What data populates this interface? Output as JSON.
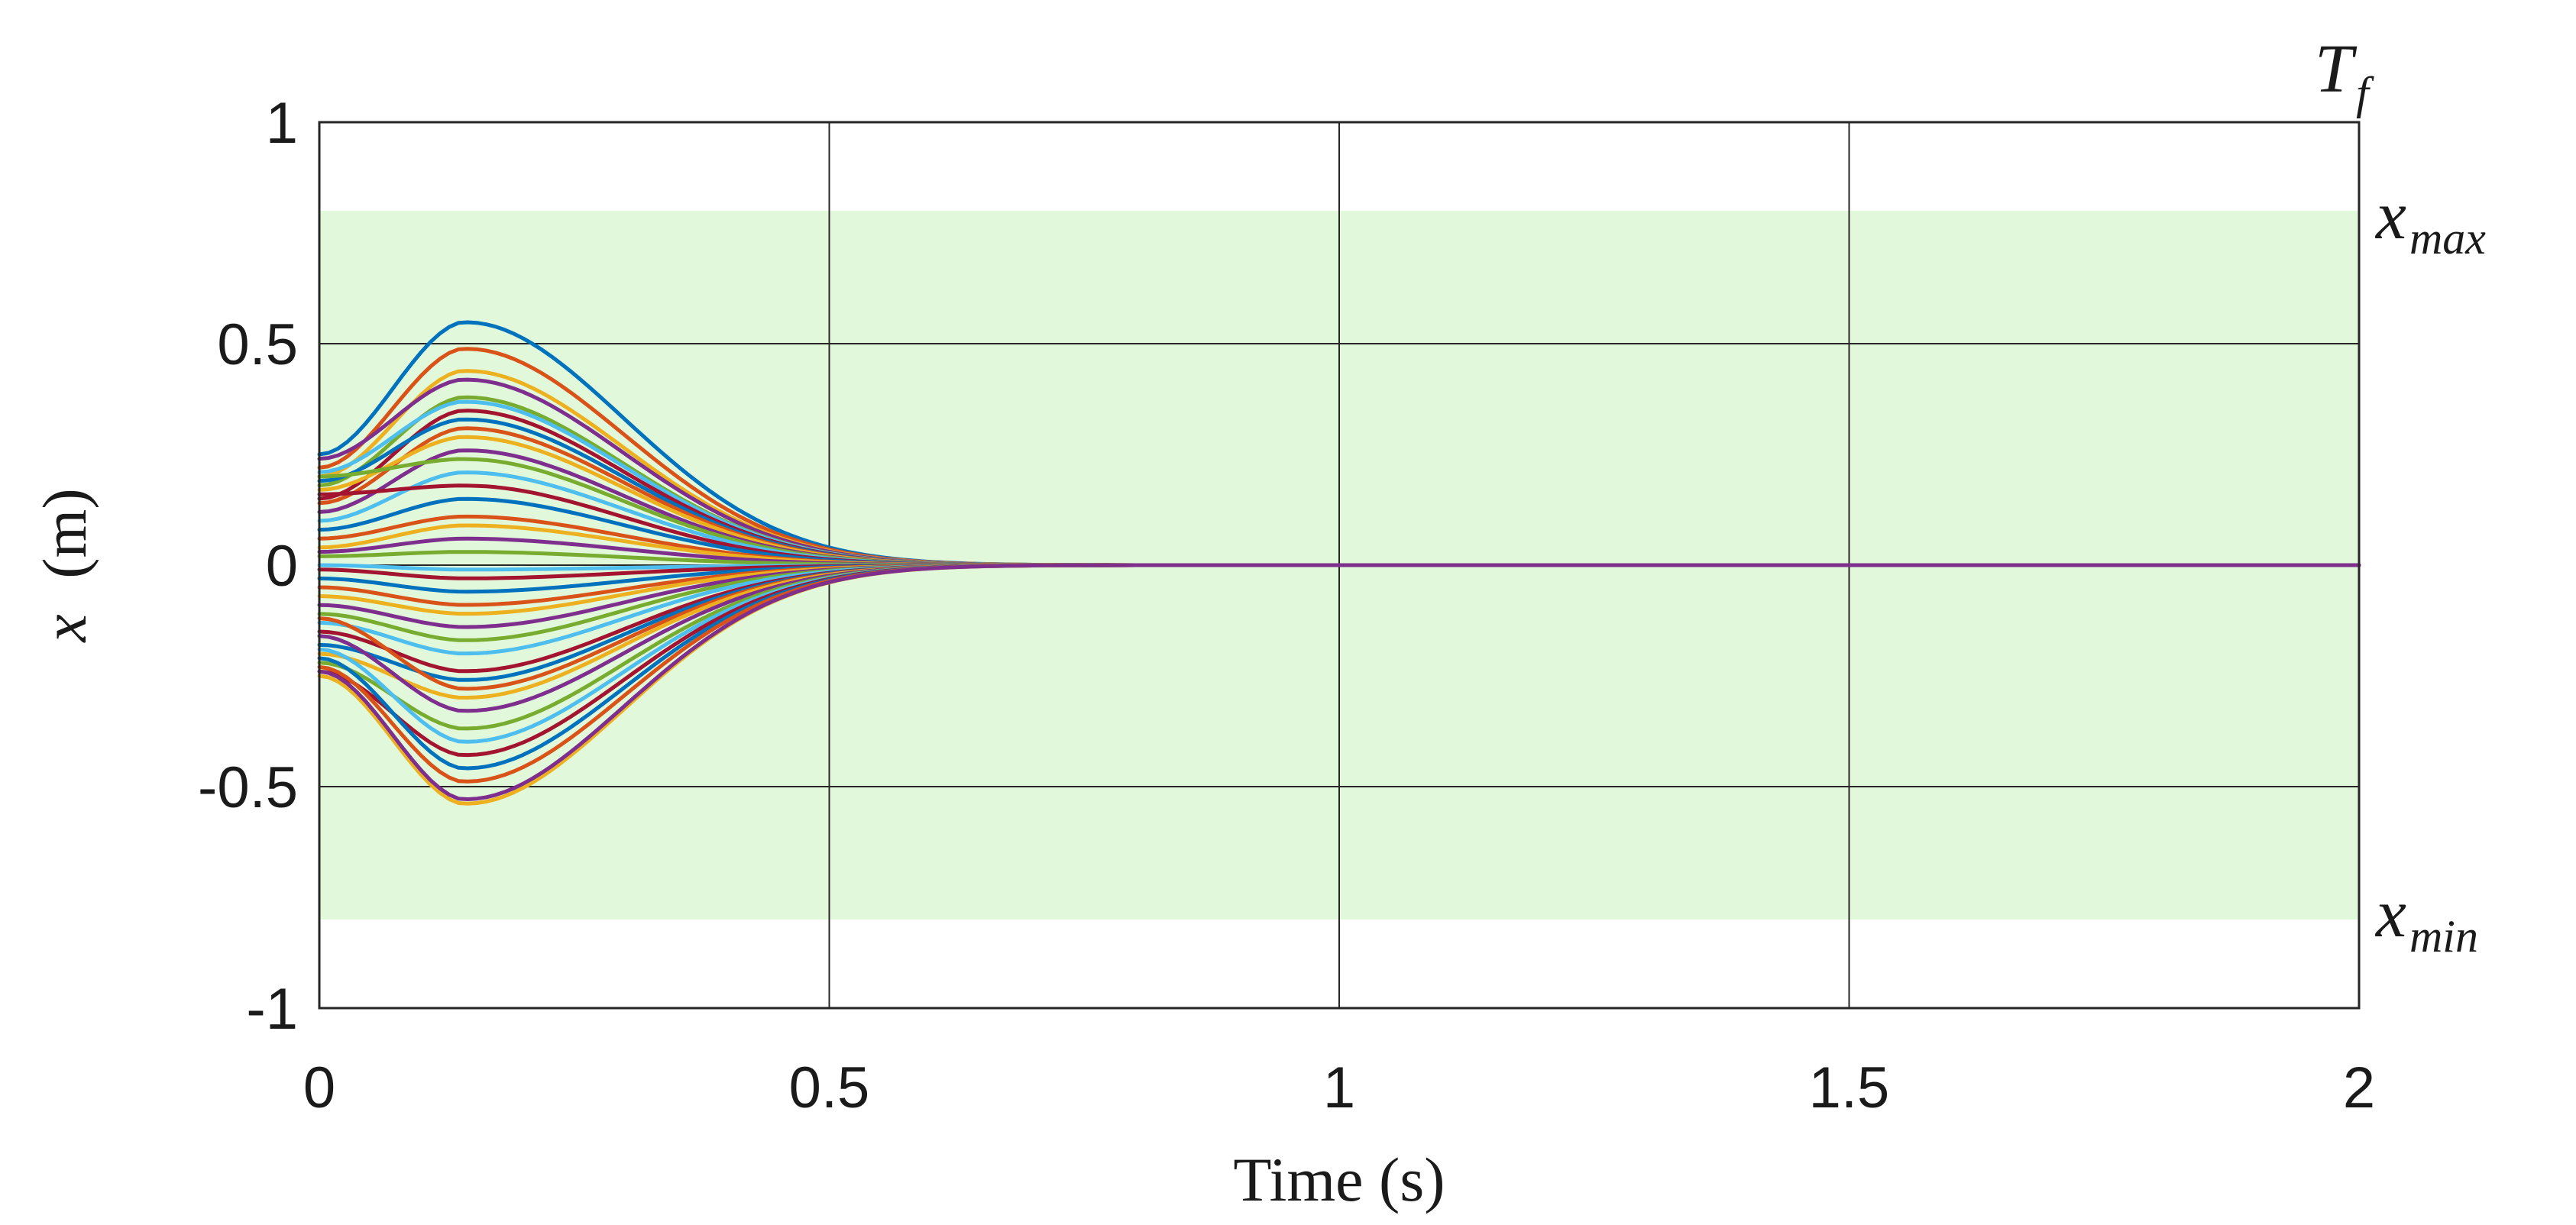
{
  "chart_data": {
    "type": "line",
    "xlabel": "Time (s)",
    "ylabel_var": "x",
    "ylabel_unit": "(m)",
    "xlim": [
      0,
      2
    ],
    "ylim": [
      -1,
      1
    ],
    "xticks": [
      0,
      0.5,
      1,
      1.5,
      2
    ],
    "xtick_labels": [
      "0",
      "0.5",
      "1",
      "1.5",
      "2"
    ],
    "yticks": [
      -1,
      -0.5,
      0,
      0.5,
      1
    ],
    "ytick_labels": [
      "-1",
      "-0.5",
      "0",
      "0.5",
      "1"
    ],
    "grid": true,
    "legend": "none",
    "constraint_band": {
      "xmin": -0.8,
      "xmax": 0.8,
      "color": "#d8f5cf"
    },
    "annotations": {
      "final_time": {
        "main": "T",
        "sub": "f"
      },
      "upper_limit": {
        "main": "x",
        "sub": "max"
      },
      "lower_limit": {
        "main": "x",
        "sub": "min"
      }
    },
    "palette": [
      "#0072BD",
      "#D95319",
      "#EDB120",
      "#7E2F8E",
      "#77AC30",
      "#4DBEEE",
      "#A2142F"
    ],
    "series": [
      {
        "x0": 0.25,
        "peak": 0.55
      },
      {
        "x0": 0.22,
        "peak": 0.49
      },
      {
        "x0": 0.2,
        "peak": 0.44
      },
      {
        "x0": 0.24,
        "peak": 0.42
      },
      {
        "x0": 0.18,
        "peak": 0.38
      },
      {
        "x0": 0.21,
        "peak": 0.37
      },
      {
        "x0": 0.15,
        "peak": 0.35
      },
      {
        "x0": 0.19,
        "peak": 0.33
      },
      {
        "x0": 0.14,
        "peak": 0.31
      },
      {
        "x0": 0.17,
        "peak": 0.29
      },
      {
        "x0": 0.12,
        "peak": 0.26
      },
      {
        "x0": 0.2,
        "peak": 0.24
      },
      {
        "x0": 0.1,
        "peak": 0.21
      },
      {
        "x0": 0.16,
        "peak": 0.18
      },
      {
        "x0": 0.08,
        "peak": 0.15
      },
      {
        "x0": 0.06,
        "peak": 0.11
      },
      {
        "x0": 0.04,
        "peak": 0.09
      },
      {
        "x0": 0.03,
        "peak": 0.06
      },
      {
        "x0": 0.02,
        "peak": 0.03
      },
      {
        "x0": 0.0,
        "peak": -0.01
      },
      {
        "x0": -0.01,
        "peak": -0.03
      },
      {
        "x0": -0.03,
        "peak": -0.06
      },
      {
        "x0": -0.05,
        "peak": -0.09
      },
      {
        "x0": -0.07,
        "peak": -0.11
      },
      {
        "x0": -0.09,
        "peak": -0.14
      },
      {
        "x0": -0.11,
        "peak": -0.17
      },
      {
        "x0": -0.13,
        "peak": -0.2
      },
      {
        "x0": -0.15,
        "peak": -0.24
      },
      {
        "x0": -0.18,
        "peak": -0.26
      },
      {
        "x0": -0.12,
        "peak": -0.28
      },
      {
        "x0": -0.2,
        "peak": -0.3
      },
      {
        "x0": -0.16,
        "peak": -0.33
      },
      {
        "x0": -0.22,
        "peak": -0.37
      },
      {
        "x0": -0.19,
        "peak": -0.4
      },
      {
        "x0": -0.24,
        "peak": -0.43
      },
      {
        "x0": -0.21,
        "peak": -0.46
      },
      {
        "x0": -0.23,
        "peak": -0.49
      },
      {
        "x0": -0.25,
        "peak": -0.54
      },
      {
        "x0": -0.24,
        "peak": -0.53
      }
    ]
  }
}
